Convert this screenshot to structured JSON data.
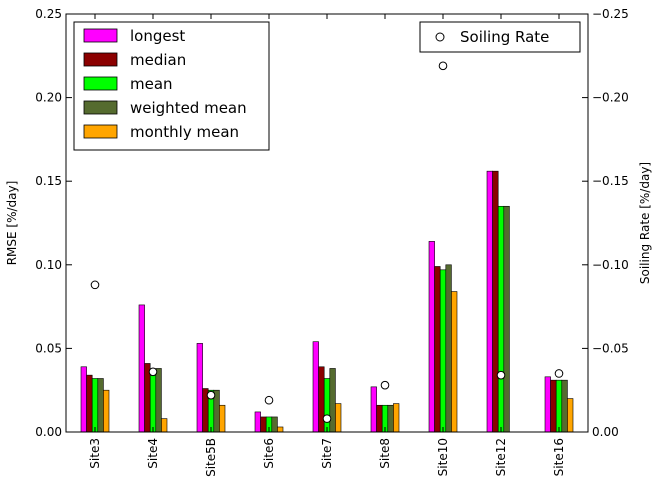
{
  "chart_data": {
    "type": "bar",
    "categories": [
      "Site3",
      "Site4",
      "Site5B",
      "Site6",
      "Site7",
      "Site8",
      "Site10",
      "Site12",
      "Site16"
    ],
    "series": [
      {
        "name": "longest",
        "color": "#ff00ff",
        "values": [
          0.039,
          0.076,
          0.053,
          0.012,
          0.054,
          0.027,
          0.114,
          0.156,
          0.033
        ]
      },
      {
        "name": "median",
        "color": "#8b0000",
        "values": [
          0.034,
          0.041,
          0.026,
          0.009,
          0.039,
          0.016,
          0.099,
          0.156,
          0.031
        ]
      },
      {
        "name": "mean",
        "color": "#00ff00",
        "values": [
          0.032,
          0.034,
          0.025,
          0.009,
          0.032,
          0.016,
          0.097,
          0.135,
          0.031
        ]
      },
      {
        "name": "weighted mean",
        "color": "#556b2f",
        "values": [
          0.032,
          0.038,
          0.025,
          0.009,
          0.038,
          0.016,
          0.1,
          0.135,
          0.031
        ]
      },
      {
        "name": "monthly mean",
        "color": "#ffa500",
        "values": [
          0.025,
          0.008,
          0.016,
          0.003,
          0.017,
          0.017,
          0.084,
          0.0,
          0.02
        ]
      }
    ],
    "soiling_rate": {
      "name": "Soiling Rate",
      "values": [
        -0.088,
        -0.036,
        -0.022,
        -0.019,
        -0.008,
        -0.028,
        -0.219,
        -0.034,
        -0.035
      ]
    },
    "ylabel": "RMSE [%/day]",
    "ylabel_right": "Soiling Rate [%/day]",
    "ylim": [
      0,
      0.25
    ],
    "ylim_right": [
      0,
      -0.25
    ],
    "yticks": [
      "0.00",
      "0.05",
      "0.10",
      "0.15",
      "0.20",
      "0.25"
    ],
    "yticks_right": [
      "0.00",
      "−0.05",
      "−0.10",
      "−0.15",
      "−0.20",
      "−0.25"
    ],
    "legend_placement": "upper-left",
    "legend_right_placement": "upper-right",
    "grid": false
  }
}
